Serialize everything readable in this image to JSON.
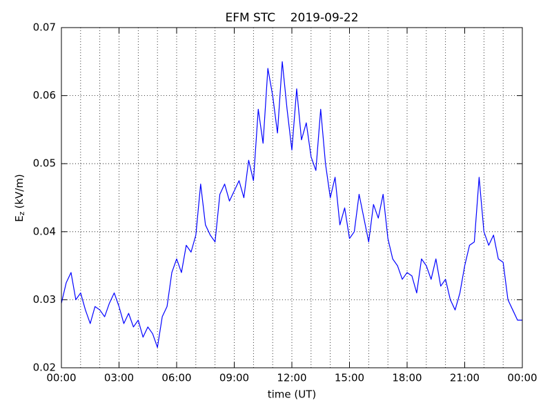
{
  "chart_data": {
    "type": "line",
    "title": "EFM STC    2019-09-22",
    "xlabel": "time (UT)",
    "ylabel": {
      "symbol": "E",
      "subscript": "z",
      "unit": "(kV/m)"
    },
    "xlim": [
      0,
      24
    ],
    "xticks": [
      {
        "value": 0,
        "label": "00:00"
      },
      {
        "value": 3,
        "label": "03:00"
      },
      {
        "value": 6,
        "label": "06:00"
      },
      {
        "value": 9,
        "label": "09:00"
      },
      {
        "value": 12,
        "label": "12:00"
      },
      {
        "value": 15,
        "label": "15:00"
      },
      {
        "value": 18,
        "label": "18:00"
      },
      {
        "value": 21,
        "label": "21:00"
      },
      {
        "value": 24,
        "label": "00:00"
      }
    ],
    "xgrid": [
      1,
      2,
      3,
      4,
      5,
      6,
      7,
      8,
      9,
      10,
      11,
      12,
      13,
      14,
      15,
      16,
      17,
      18,
      19,
      20,
      21,
      22,
      23
    ],
    "ylim": [
      0.02,
      0.07
    ],
    "yticks": [
      0.02,
      0.03,
      0.04,
      0.05,
      0.06,
      0.07
    ],
    "grid": true,
    "x": [
      0,
      0.25,
      0.5,
      0.75,
      1,
      1.25,
      1.5,
      1.75,
      2,
      2.25,
      2.5,
      2.75,
      3,
      3.25,
      3.5,
      3.75,
      4,
      4.25,
      4.5,
      4.75,
      5,
      5.25,
      5.5,
      5.75,
      6,
      6.25,
      6.5,
      6.75,
      7,
      7.25,
      7.5,
      7.75,
      8,
      8.25,
      8.5,
      8.75,
      9,
      9.25,
      9.5,
      9.75,
      10,
      10.25,
      10.5,
      10.75,
      11,
      11.25,
      11.5,
      11.75,
      12,
      12.25,
      12.5,
      12.75,
      13,
      13.25,
      13.5,
      13.75,
      14,
      14.25,
      14.5,
      14.75,
      15,
      15.25,
      15.5,
      15.75,
      16,
      16.25,
      16.5,
      16.75,
      17,
      17.25,
      17.5,
      17.75,
      18,
      18.25,
      18.5,
      18.75,
      19,
      19.25,
      19.5,
      19.75,
      20,
      20.25,
      20.5,
      20.75,
      21,
      21.25,
      21.5,
      21.75,
      22,
      22.25,
      22.5,
      22.75,
      23,
      23.25,
      23.5,
      23.75,
      24
    ],
    "series": [
      {
        "color": "#0000ff",
        "values": [
          0.0295,
          0.0325,
          0.034,
          0.03,
          0.031,
          0.0285,
          0.0265,
          0.029,
          0.0285,
          0.0275,
          0.0295,
          0.031,
          0.029,
          0.0265,
          0.028,
          0.026,
          0.027,
          0.0245,
          0.026,
          0.025,
          0.023,
          0.0275,
          0.029,
          0.034,
          0.036,
          0.034,
          0.038,
          0.037,
          0.0395,
          0.047,
          0.041,
          0.0395,
          0.0385,
          0.0455,
          0.047,
          0.0445,
          0.046,
          0.0475,
          0.045,
          0.0505,
          0.0475,
          0.058,
          0.053,
          0.064,
          0.06,
          0.0545,
          0.065,
          0.058,
          0.052,
          0.061,
          0.0535,
          0.056,
          0.051,
          0.049,
          0.058,
          0.05,
          0.045,
          0.048,
          0.041,
          0.0435,
          0.039,
          0.04,
          0.0455,
          0.042,
          0.0385,
          0.044,
          0.042,
          0.0455,
          0.039,
          0.036,
          0.035,
          0.033,
          0.034,
          0.0335,
          0.031,
          0.036,
          0.035,
          0.033,
          0.036,
          0.032,
          0.033,
          0.03,
          0.0285,
          0.031,
          0.035,
          0.038,
          0.0385,
          0.048,
          0.04,
          0.038,
          0.0395,
          0.036,
          0.0355,
          0.03,
          0.0285,
          0.027,
          0.027
        ]
      }
    ]
  }
}
